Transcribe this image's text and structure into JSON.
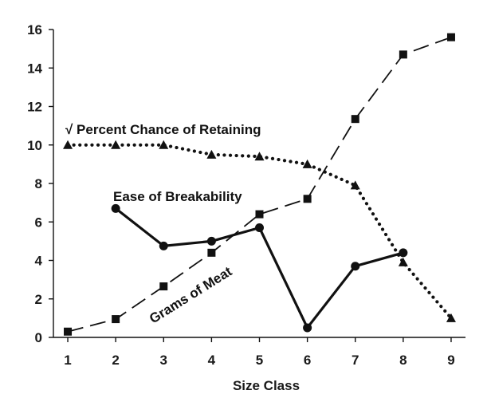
{
  "chart_data": {
    "type": "line",
    "xlabel": "Size Class",
    "ylabel": "",
    "x": [
      1,
      2,
      3,
      4,
      5,
      6,
      7,
      8,
      9
    ],
    "xlim": [
      0.7,
      9.3
    ],
    "ylim": [
      0,
      16
    ],
    "yticks": [
      0,
      2,
      4,
      6,
      8,
      10,
      12,
      14,
      16
    ],
    "grid": false,
    "series": [
      {
        "name": "Grams of Meat",
        "style": "dashed",
        "marker": "square",
        "x": [
          1,
          2,
          3,
          4,
          5,
          6,
          7,
          8,
          9
        ],
        "values": [
          0.3,
          0.95,
          2.65,
          4.4,
          6.4,
          7.2,
          11.35,
          14.7,
          15.6
        ]
      },
      {
        "name": "√ Percent Chance of Retaining",
        "style": "dotted",
        "marker": "triangle",
        "x": [
          1,
          2,
          3,
          4,
          5,
          6,
          7,
          8,
          9
        ],
        "values": [
          10,
          10,
          10,
          9.5,
          9.4,
          9,
          7.9,
          3.9,
          1
        ]
      },
      {
        "name": "Ease of Breakability",
        "style": "solid",
        "marker": "circle",
        "x": [
          2,
          3,
          4,
          5,
          6,
          7,
          8
        ],
        "values": [
          6.7,
          4.75,
          5,
          5.7,
          0.5,
          3.7,
          4.4
        ]
      }
    ],
    "color": "#111111"
  }
}
